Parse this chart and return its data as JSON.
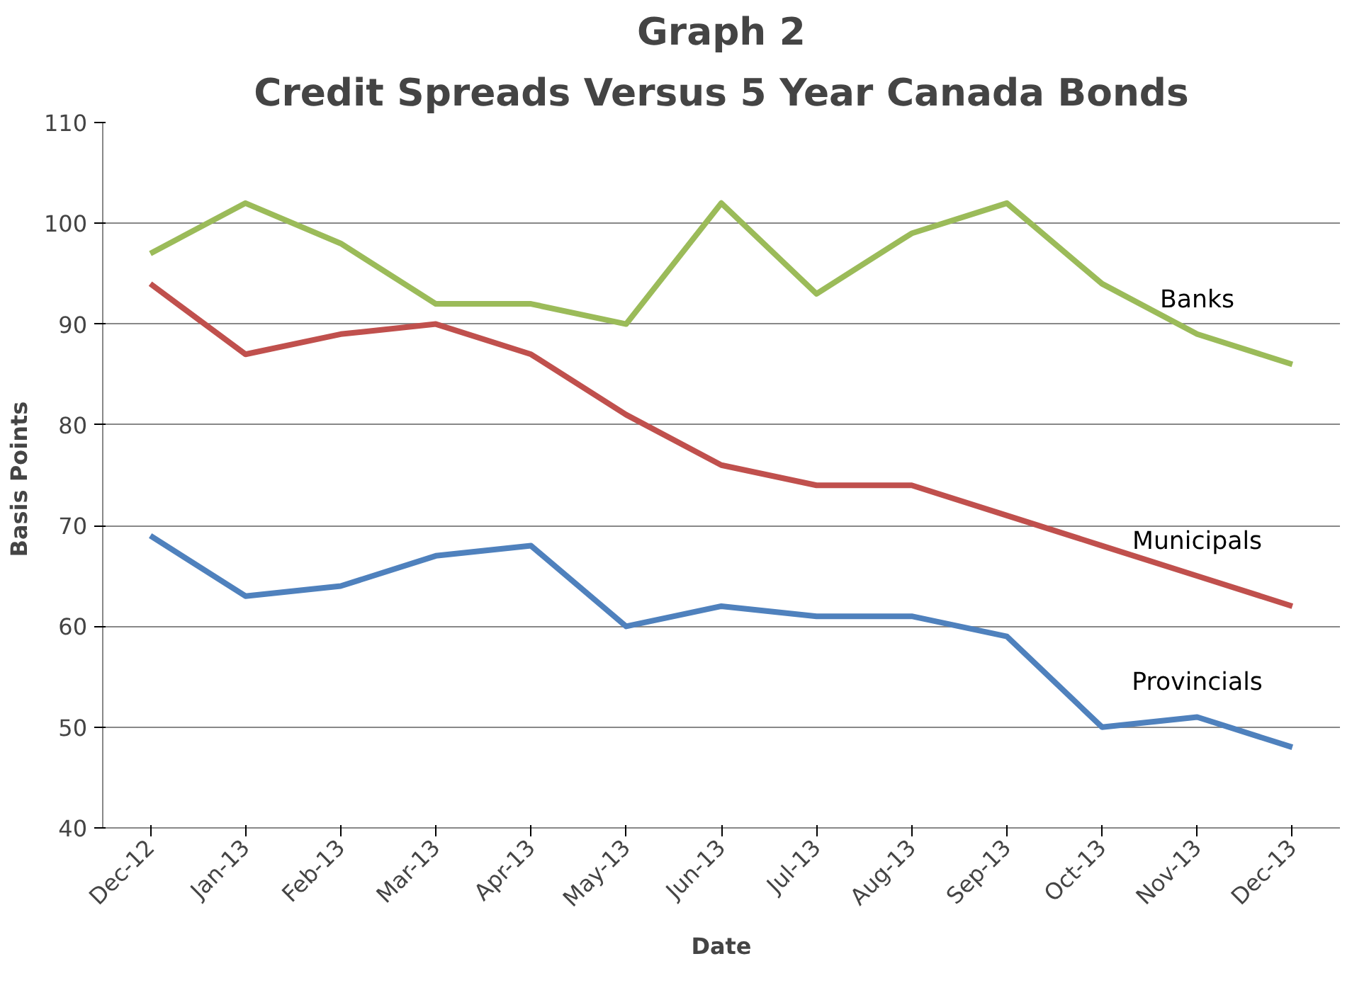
{
  "chart_data": {
    "type": "line",
    "title": "Graph 2",
    "subtitle": "Credit Spreads Versus 5 Year Canada Bonds",
    "xlabel": "Date",
    "ylabel": "Basis  Points",
    "categories": [
      "Dec-12",
      "Jan-13",
      "Feb-13",
      "Mar-13",
      "Apr-13",
      "May-13",
      "Jun-13",
      "Jul-13",
      "Aug-13",
      "Sep-13",
      "Oct-13",
      "Nov-13",
      "Dec-13"
    ],
    "series": [
      {
        "name": "Banks",
        "color": "#9bbb59",
        "values": [
          97,
          102,
          98,
          92,
          92,
          90,
          102,
          93,
          99,
          102,
          94,
          89,
          86
        ]
      },
      {
        "name": "Municipals",
        "color": "#c0504d",
        "values": [
          94,
          87,
          89,
          90,
          87,
          81,
          76,
          74,
          74,
          71,
          68,
          65,
          62
        ]
      },
      {
        "name": "Provincials",
        "color": "#4f81bd",
        "values": [
          69,
          63,
          64,
          67,
          68,
          60,
          62,
          61,
          61,
          59,
          50,
          51,
          48
        ]
      }
    ],
    "ylim": [
      40,
      110
    ],
    "yticks": [
      40,
      50,
      60,
      70,
      80,
      90,
      100,
      110
    ],
    "grid": "y",
    "legend": false,
    "marker": "none",
    "line_style": "solid"
  }
}
